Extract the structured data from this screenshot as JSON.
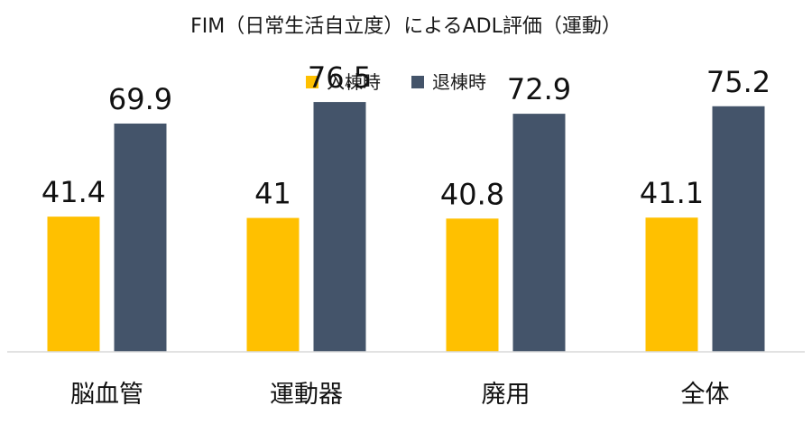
{
  "chart_data": {
    "type": "bar",
    "title": "FIM（日常生活自立度）によるADL評価（運動）",
    "xlabel": "",
    "ylabel": "",
    "categories": [
      "脳血管",
      "運動器",
      "廃用",
      "全体"
    ],
    "series": [
      {
        "name": "入棟時",
        "color": "#FFC000",
        "values": [
          41.4,
          41,
          40.8,
          41.1
        ],
        "labels": [
          "41.4",
          "41",
          "40.8",
          "41.1"
        ]
      },
      {
        "name": "退棟時",
        "color": "#44546A",
        "values": [
          69.9,
          76.5,
          72.9,
          75.2
        ],
        "labels": [
          "69.9",
          "76.5",
          "72.9",
          "75.2"
        ]
      }
    ],
    "ylim": [
      0,
      100
    ],
    "grid": false,
    "legend": "top-center",
    "axis_color": "#d9d9d9"
  }
}
